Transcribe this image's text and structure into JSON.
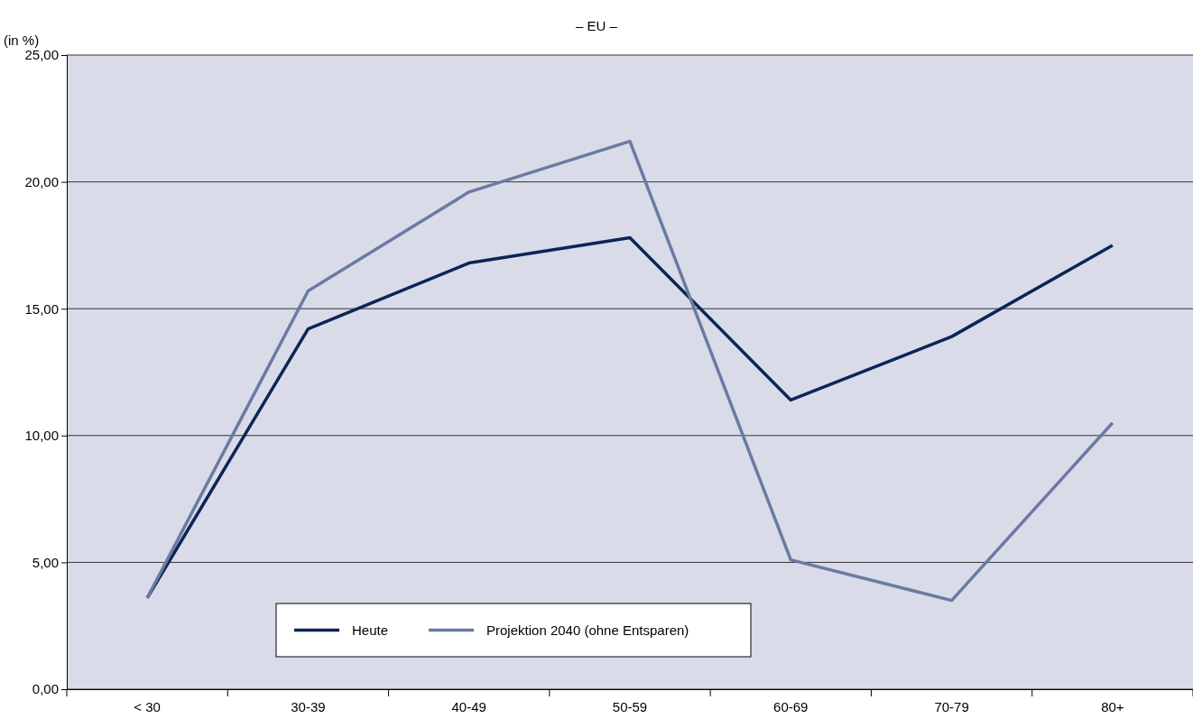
{
  "chart_data": {
    "type": "line",
    "title": "– EU –",
    "ylabel": "(in %)",
    "categories": [
      "< 30",
      "30-39",
      "40-49",
      "50-59",
      "60-69",
      "70-79",
      "80+"
    ],
    "series": [
      {
        "name": "Heute",
        "color": "#0c2557",
        "values": [
          3.6,
          14.2,
          16.8,
          17.8,
          11.4,
          13.9,
          17.5
        ]
      },
      {
        "name": "Projektion 2040 (ohne Entsparen)",
        "color": "#6b7aa3",
        "values": [
          3.6,
          15.7,
          19.6,
          21.6,
          5.1,
          3.5,
          10.5
        ]
      }
    ],
    "ylim": [
      0,
      25
    ],
    "yticks": [
      {
        "value": 0,
        "label": "0,00"
      },
      {
        "value": 5,
        "label": "5,00"
      },
      {
        "value": 10,
        "label": "10,00"
      },
      {
        "value": 15,
        "label": "15,00"
      },
      {
        "value": 20,
        "label": "20,00"
      },
      {
        "value": 25,
        "label": "25,00"
      }
    ],
    "grid": "y",
    "legend": "bottom",
    "marker": "none",
    "line_style": "solid"
  }
}
